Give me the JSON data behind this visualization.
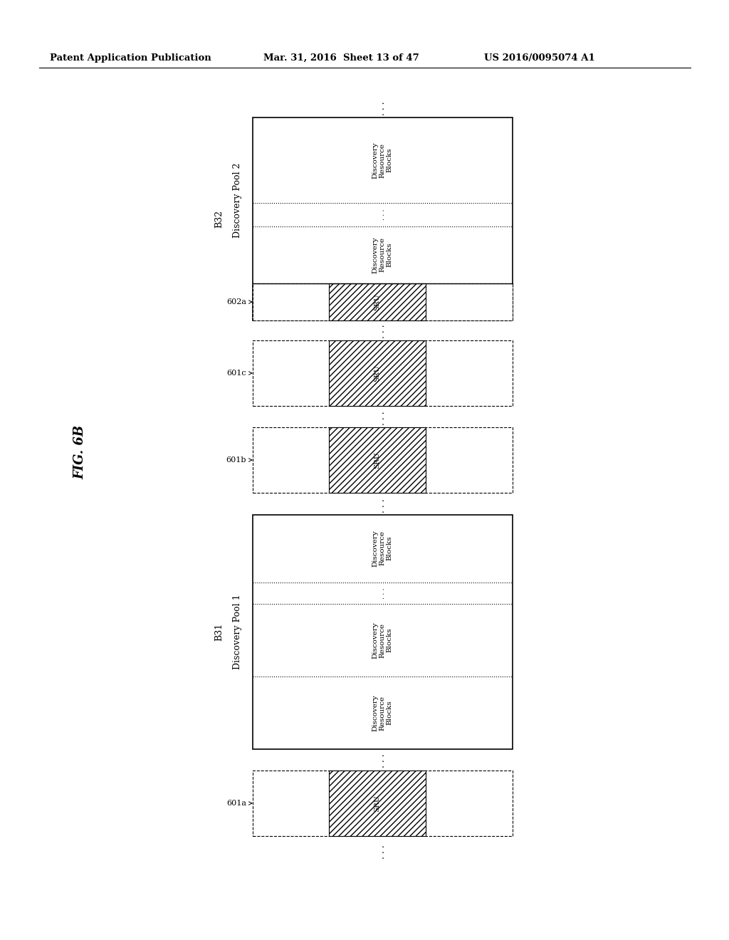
{
  "header_left": "Patent Application Publication",
  "header_mid": "Mar. 31, 2016  Sheet 13 of 47",
  "header_right": "US 2016/0095074 A1",
  "fig_label": "FIG. 6B",
  "bg_color": "#ffffff"
}
